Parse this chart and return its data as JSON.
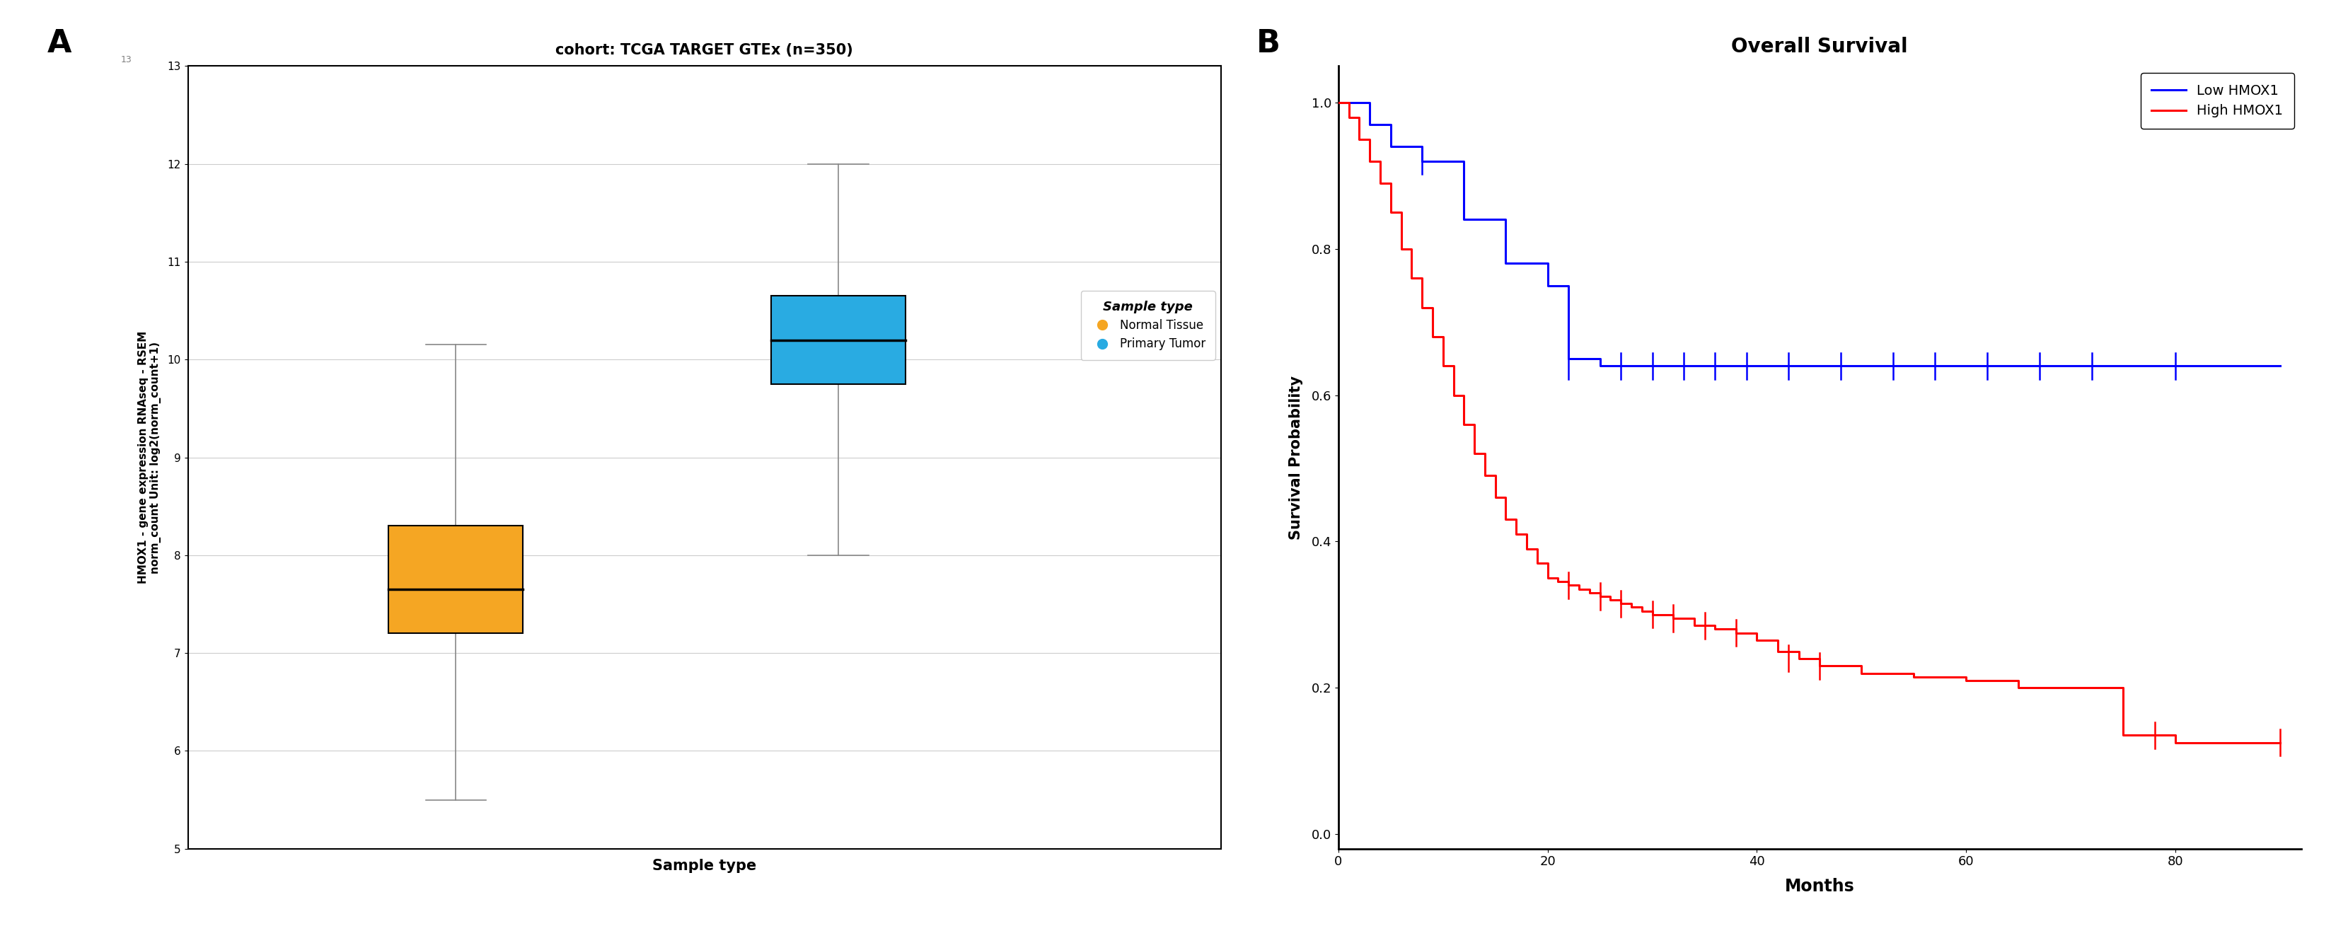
{
  "panel_a": {
    "title": "cohort: TCGA TARGET GTEx (n=350)",
    "xlabel": "Sample type",
    "ylabel": "HMOX1 - gene expression RNAseq - RSEM\nnorm_count Unit: log2(norm_count+1)",
    "panel_label": "A",
    "ylim": [
      5,
      13
    ],
    "yticks": [
      5,
      6,
      7,
      8,
      9,
      10,
      11,
      12,
      13
    ],
    "boxes": [
      {
        "label": "Normal Tissue",
        "color": "#F5A623",
        "x": 1,
        "whisker_low": 5.5,
        "q1": 7.2,
        "median": 7.65,
        "q3": 8.3,
        "whisker_high": 10.15
      },
      {
        "label": "Primary Tumor",
        "color": "#29ABE2",
        "x": 2,
        "whisker_low": 8.0,
        "q1": 9.75,
        "median": 10.2,
        "q3": 10.65,
        "whisker_high": 12.0
      }
    ],
    "legend_title": "Sample type",
    "legend_items": [
      {
        "label": "Normal Tissue",
        "color": "#F5A623"
      },
      {
        "label": "Primary Tumor",
        "color": "#29ABE2"
      }
    ],
    "grid_color": "#CCCCCC",
    "background_color": "#FFFFFF"
  },
  "panel_b": {
    "title": "Overall Survival",
    "panel_label": "B",
    "xlabel": "Months",
    "ylabel": "Survival Probability",
    "xlim": [
      0,
      92
    ],
    "ylim": [
      -0.02,
      1.05
    ],
    "xticks": [
      0,
      20,
      40,
      60,
      80
    ],
    "yticks": [
      0.0,
      0.2,
      0.4,
      0.6,
      0.8,
      1.0
    ],
    "low_hmox1": {
      "times": [
        0,
        3,
        5,
        8,
        12,
        16,
        20,
        22,
        25,
        30,
        35,
        90
      ],
      "probs": [
        1.0,
        0.97,
        0.94,
        0.92,
        0.84,
        0.78,
        0.75,
        0.65,
        0.64,
        0.64,
        0.64,
        0.64
      ],
      "censors_x": [
        8,
        22,
        27,
        30,
        33,
        36,
        39,
        43,
        48,
        53,
        57,
        62,
        67,
        72,
        80
      ],
      "censors_y": [
        0.92,
        0.64,
        0.64,
        0.64,
        0.64,
        0.64,
        0.64,
        0.64,
        0.64,
        0.64,
        0.64,
        0.64,
        0.64,
        0.64,
        0.64
      ],
      "color": "blue",
      "label": "Low HMOX1"
    },
    "high_hmox1": {
      "times": [
        0,
        1,
        2,
        3,
        4,
        5,
        6,
        7,
        8,
        9,
        10,
        11,
        12,
        13,
        14,
        15,
        16,
        17,
        18,
        19,
        20,
        21,
        22,
        23,
        24,
        25,
        26,
        27,
        28,
        29,
        30,
        32,
        34,
        36,
        38,
        40,
        42,
        44,
        46,
        50,
        55,
        60,
        65,
        70,
        75,
        80,
        85,
        90
      ],
      "probs": [
        1.0,
        0.98,
        0.95,
        0.92,
        0.89,
        0.85,
        0.8,
        0.76,
        0.72,
        0.68,
        0.64,
        0.6,
        0.56,
        0.52,
        0.49,
        0.46,
        0.43,
        0.41,
        0.39,
        0.37,
        0.35,
        0.345,
        0.34,
        0.335,
        0.33,
        0.325,
        0.32,
        0.315,
        0.31,
        0.305,
        0.3,
        0.295,
        0.285,
        0.28,
        0.275,
        0.265,
        0.25,
        0.24,
        0.23,
        0.22,
        0.215,
        0.21,
        0.2,
        0.2,
        0.135,
        0.125,
        0.125,
        0.125
      ],
      "censors_x": [
        22,
        25,
        27,
        30,
        32,
        35,
        38,
        43,
        46,
        78,
        90
      ],
      "censors_y": [
        0.34,
        0.325,
        0.315,
        0.3,
        0.295,
        0.285,
        0.275,
        0.24,
        0.23,
        0.135,
        0.125
      ],
      "color": "red",
      "label": "High HMOX1"
    },
    "background_color": "#FFFFFF"
  }
}
